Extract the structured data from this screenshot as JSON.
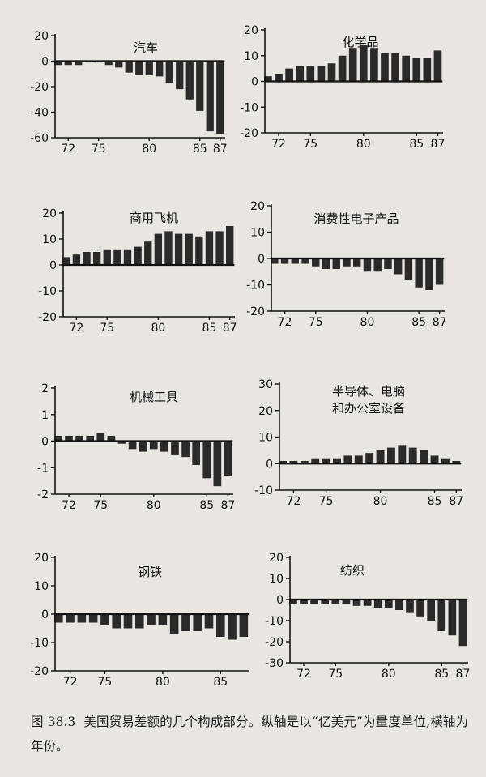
{
  "chart_data": [
    {
      "type": "bar",
      "title_lines": [
        "汽车"
      ],
      "x": [
        71,
        72,
        73,
        74,
        75,
        76,
        77,
        78,
        79,
        80,
        81,
        82,
        83,
        84,
        85,
        86,
        87
      ],
      "values": [
        -3,
        -3,
        -3,
        -1,
        -1,
        -3,
        -5,
        -9,
        -11,
        -11,
        -12,
        -17,
        -22,
        -30,
        -39,
        -55,
        -57
      ],
      "ylim": [
        -60,
        20
      ],
      "yticks": [
        "20",
        "0",
        "-20",
        "-40",
        "-60"
      ],
      "ytick_values": [
        20,
        0,
        -20,
        -40,
        -60
      ],
      "xtick_labels": [
        "72",
        "75",
        "80",
        "85",
        "87"
      ],
      "xtick_values": [
        72,
        75,
        80,
        85,
        87
      ]
    },
    {
      "type": "bar",
      "title_lines": [
        "化学品"
      ],
      "x": [
        71,
        72,
        73,
        74,
        75,
        76,
        77,
        78,
        79,
        80,
        81,
        82,
        83,
        84,
        85,
        86,
        87
      ],
      "values": [
        2,
        3,
        5,
        6,
        6,
        6,
        7,
        10,
        13,
        14,
        13,
        11,
        11,
        10,
        9,
        9,
        12
      ],
      "ylim": [
        -20,
        20
      ],
      "yticks": [
        "20",
        "10",
        "0",
        "-10",
        "-20"
      ],
      "ytick_values": [
        20,
        10,
        0,
        -10,
        -20
      ],
      "xtick_labels": [
        "72",
        "75",
        "80",
        "85",
        "87"
      ],
      "xtick_values": [
        72,
        75,
        80,
        85,
        87
      ]
    },
    {
      "type": "bar",
      "title_lines": [
        "商用飞机"
      ],
      "x": [
        71,
        72,
        73,
        74,
        75,
        76,
        77,
        78,
        79,
        80,
        81,
        82,
        83,
        84,
        85,
        86,
        87
      ],
      "values": [
        3,
        4,
        5,
        5,
        6,
        6,
        6,
        7,
        9,
        12,
        13,
        12,
        12,
        11,
        13,
        13,
        15
      ],
      "ylim": [
        -20,
        20
      ],
      "yticks": [
        "20",
        "10",
        "0",
        "-10",
        "-20"
      ],
      "ytick_values": [
        20,
        10,
        0,
        -10,
        -20
      ],
      "xtick_labels": [
        "72",
        "75",
        "80",
        "85",
        "87"
      ],
      "xtick_values": [
        72,
        75,
        80,
        85,
        87
      ]
    },
    {
      "type": "bar",
      "title_lines": [
        "消费性电子产品"
      ],
      "x": [
        71,
        72,
        73,
        74,
        75,
        76,
        77,
        78,
        79,
        80,
        81,
        82,
        83,
        84,
        85,
        86,
        87
      ],
      "values": [
        -2,
        -2,
        -2,
        -2,
        -3,
        -4,
        -4,
        -3,
        -3,
        -5,
        -5,
        -4,
        -6,
        -8,
        -11,
        -12,
        -10
      ],
      "ylim": [
        -20,
        20
      ],
      "yticks": [
        "20",
        "10",
        "0",
        "-10",
        "-20"
      ],
      "ytick_values": [
        20,
        10,
        0,
        -10,
        -20
      ],
      "xtick_labels": [
        "72",
        "75",
        "80",
        "85",
        "87"
      ],
      "xtick_values": [
        72,
        75,
        80,
        85,
        87
      ]
    },
    {
      "type": "bar",
      "title_lines": [
        "机械工具"
      ],
      "x": [
        71,
        72,
        73,
        74,
        75,
        76,
        77,
        78,
        79,
        80,
        81,
        82,
        83,
        84,
        85,
        86,
        87
      ],
      "values": [
        0.2,
        0.2,
        0.2,
        0.2,
        0.3,
        0.2,
        -0.1,
        -0.3,
        -0.4,
        -0.3,
        -0.4,
        -0.5,
        -0.6,
        -0.9,
        -1.4,
        -1.7,
        -1.3
      ],
      "ylim": [
        -2,
        2
      ],
      "yticks": [
        "2",
        "1",
        "0",
        "-1",
        "-2"
      ],
      "ytick_values": [
        2,
        1,
        0,
        -1,
        -2
      ],
      "xtick_labels": [
        "72",
        "75",
        "80",
        "85",
        "87"
      ],
      "xtick_values": [
        72,
        75,
        80,
        85,
        87
      ]
    },
    {
      "type": "bar",
      "title_lines": [
        "半导体、电脑",
        "和办公室设备"
      ],
      "x": [
        71,
        72,
        73,
        74,
        75,
        76,
        77,
        78,
        79,
        80,
        81,
        82,
        83,
        84,
        85,
        86,
        87
      ],
      "values": [
        1,
        1,
        1,
        2,
        2,
        2,
        3,
        3,
        4,
        5,
        6,
        7,
        6,
        5,
        3,
        2,
        1
      ],
      "ylim": [
        -10,
        30
      ],
      "yticks": [
        "30",
        "20",
        "10",
        "0",
        "-10"
      ],
      "ytick_values": [
        30,
        20,
        10,
        0,
        -10
      ],
      "xtick_labels": [
        "72",
        "75",
        "80",
        "85",
        "87"
      ],
      "xtick_values": [
        72,
        75,
        80,
        85,
        87
      ]
    },
    {
      "type": "bar",
      "title_lines": [
        "钢铁"
      ],
      "x": [
        71,
        72,
        73,
        74,
        75,
        76,
        77,
        78,
        79,
        80,
        81,
        82,
        83,
        84,
        85,
        86,
        87
      ],
      "values": [
        -3,
        -3,
        -3,
        -3,
        -4,
        -5,
        -5,
        -5,
        -4,
        -4,
        -7,
        -6,
        -6,
        -5,
        -8,
        -9,
        -8
      ],
      "ylim": [
        -20,
        20
      ],
      "yticks": [
        "20",
        "10",
        "0",
        "-10",
        "-20"
      ],
      "ytick_values": [
        20,
        10,
        0,
        -10,
        -20
      ],
      "xtick_labels": [
        "72",
        "75",
        "80",
        "85"
      ],
      "xtick_values": [
        72,
        75,
        80,
        85
      ]
    },
    {
      "type": "bar",
      "title_lines": [
        "纺织"
      ],
      "x": [
        71,
        72,
        73,
        74,
        75,
        76,
        77,
        78,
        79,
        80,
        81,
        82,
        83,
        84,
        85,
        86,
        87
      ],
      "values": [
        -2,
        -2,
        -2,
        -2,
        -2,
        -2,
        -3,
        -3,
        -4,
        -4,
        -5,
        -6,
        -8,
        -10,
        -15,
        -17,
        -22
      ],
      "ylim": [
        -30,
        20
      ],
      "yticks": [
        "20",
        "10",
        "0",
        "-10",
        "-20",
        "-30"
      ],
      "ytick_values": [
        20,
        10,
        0,
        -10,
        -20,
        -30
      ],
      "xtick_labels": [
        "72",
        "75",
        "80",
        "85",
        "87"
      ],
      "xtick_values": [
        72,
        75,
        80,
        85,
        87
      ]
    }
  ],
  "caption": {
    "label": "图 38.3",
    "text": "美国贸易差额的几个构成部分。纵轴是以“亿美元”为量度单位,横轴为年份。"
  },
  "colors": {
    "bar": "#2a2a2a",
    "axis": "#111111",
    "background": "#e9e6e2"
  }
}
